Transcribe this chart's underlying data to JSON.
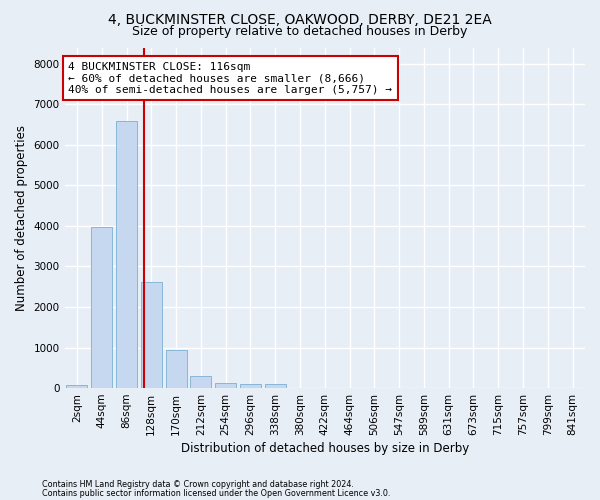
{
  "title": "4, BUCKMINSTER CLOSE, OAKWOOD, DERBY, DE21 2EA",
  "subtitle": "Size of property relative to detached houses in Derby",
  "xlabel": "Distribution of detached houses by size in Derby",
  "ylabel": "Number of detached properties",
  "footnote1": "Contains HM Land Registry data © Crown copyright and database right 2024.",
  "footnote2": "Contains public sector information licensed under the Open Government Licence v3.0.",
  "bin_labels": [
    "2sqm",
    "44sqm",
    "86sqm",
    "128sqm",
    "170sqm",
    "212sqm",
    "254sqm",
    "296sqm",
    "338sqm",
    "380sqm",
    "422sqm",
    "464sqm",
    "506sqm",
    "547sqm",
    "589sqm",
    "631sqm",
    "673sqm",
    "715sqm",
    "757sqm",
    "799sqm",
    "841sqm"
  ],
  "bar_values": [
    75,
    3980,
    6580,
    2620,
    950,
    300,
    130,
    100,
    90,
    0,
    0,
    0,
    0,
    0,
    0,
    0,
    0,
    0,
    0,
    0,
    0
  ],
  "bar_color": "#c5d8ef",
  "bar_edge_color": "#7aafd4",
  "vline_x": 2.72,
  "vline_color": "#cc0000",
  "annotation_line1": "4 BUCKMINSTER CLOSE: 116sqm",
  "annotation_line2": "← 60% of detached houses are smaller (8,666)",
  "annotation_line3": "40% of semi-detached houses are larger (5,757) →",
  "annotation_box_color": "white",
  "annotation_box_edge_color": "#cc0000",
  "ylim": [
    0,
    8400
  ],
  "yticks": [
    0,
    1000,
    2000,
    3000,
    4000,
    5000,
    6000,
    7000,
    8000
  ],
  "bg_color": "#e8eef6",
  "grid_color": "white",
  "title_fontsize": 10,
  "subtitle_fontsize": 9,
  "axis_label_fontsize": 8.5,
  "tick_fontsize": 7.5,
  "annotation_fontsize": 8
}
